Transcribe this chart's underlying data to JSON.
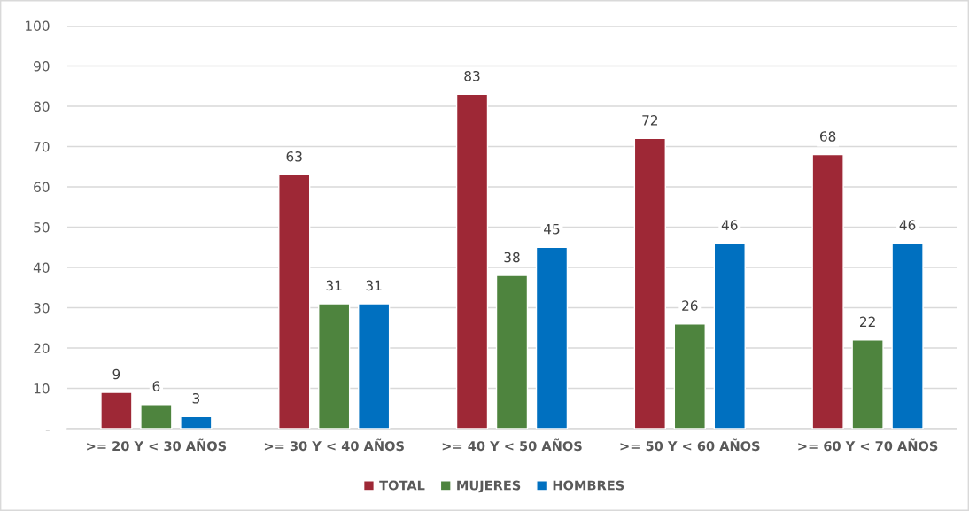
{
  "chart_data": {
    "type": "bar",
    "categories": [
      ">= 20 Y < 30 AÑOS",
      ">= 30 Y < 40 AÑOS",
      ">= 40 Y < 50 AÑOS",
      ">= 50 Y < 60 AÑOS",
      ">= 60 Y < 70 AÑOS"
    ],
    "series": [
      {
        "name": "TOTAL",
        "color": "#9e2836",
        "values": [
          9,
          63,
          83,
          72,
          68
        ]
      },
      {
        "name": "MUJERES",
        "color": "#4e843e",
        "values": [
          6,
          31,
          38,
          26,
          22
        ]
      },
      {
        "name": "HOMBRES",
        "color": "#0070c0",
        "values": [
          3,
          31,
          45,
          46,
          46
        ]
      }
    ],
    "ylim": [
      0,
      100
    ],
    "yticks": [
      {
        "value": 0,
        "label": "-"
      },
      10,
      20,
      30,
      40,
      50,
      60,
      70,
      80,
      90,
      100
    ],
    "grid": "y",
    "legend": "bottom",
    "data_labels": true
  }
}
